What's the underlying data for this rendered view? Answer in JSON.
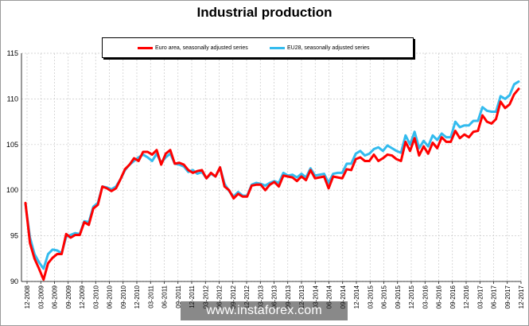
{
  "chart_data": {
    "type": "line",
    "title": "Industrial production",
    "xlabel": "",
    "ylabel": "",
    "ylim": [
      90,
      115
    ],
    "yticks": [
      90,
      95,
      100,
      105,
      110,
      115
    ],
    "grid": true,
    "legend_position": "top-center",
    "x_tick_labels": [
      "12-2008",
      "03-2009",
      "06-2009",
      "09-2009",
      "12-2009",
      "03-2010",
      "06-2010",
      "09-2010",
      "12-2010",
      "03-2011",
      "06-2011",
      "09-2011",
      "12-2011",
      "03-2012",
      "06-2012",
      "09-2012",
      "12-2012",
      "03-2013",
      "06-2013",
      "09-2013",
      "12-2013",
      "03-2014",
      "06-2014",
      "09-2014",
      "12-2014",
      "03-2015",
      "06-2015",
      "09-2015",
      "12-2015",
      "03-2016",
      "06-2016",
      "09-2016",
      "12-2016",
      "03-2017",
      "06-2017",
      "09-2017",
      "12-2017"
    ],
    "series": [
      {
        "name": "Euro area, seasonally adjusted series",
        "color": "#ff0000",
        "values": [
          98.6,
          94.2,
          92.5,
          91.4,
          90.2,
          92.0,
          92.6,
          93.0,
          93.0,
          95.2,
          94.8,
          95.1,
          95.1,
          96.5,
          96.2,
          98.0,
          98.4,
          100.4,
          100.2,
          99.9,
          100.2,
          101.2,
          102.3,
          102.8,
          103.5,
          103.2,
          104.2,
          104.2,
          103.9,
          104.4,
          102.8,
          104.0,
          104.4,
          102.9,
          103.0,
          102.8,
          102.2,
          101.9,
          102.1,
          102.2,
          101.3,
          101.9,
          101.5,
          102.5,
          100.4,
          100.0,
          99.1,
          99.6,
          99.3,
          99.3,
          100.5,
          100.6,
          100.6,
          100.0,
          100.6,
          100.9,
          100.4,
          101.6,
          101.5,
          101.4,
          101.0,
          101.5,
          101.1,
          102.2,
          101.3,
          101.4,
          101.5,
          100.2,
          101.5,
          101.4,
          101.3,
          102.3,
          102.2,
          103.4,
          103.6,
          103.2,
          103.2,
          103.9,
          103.2,
          103.5,
          103.9,
          103.8,
          103.4,
          103.2,
          105.3,
          104.3,
          105.7,
          103.8,
          104.8,
          104.0,
          105.2,
          104.6,
          105.8,
          105.3,
          105.3,
          106.5,
          105.7,
          106.1,
          105.8,
          106.4,
          106.5,
          108.2,
          107.5,
          107.3,
          107.8,
          109.7,
          109.0,
          109.4,
          110.5,
          111.1
        ]
      },
      {
        "name": "EU28, seasonally adjusted series",
        "color": "#33bbee",
        "values": [
          98.5,
          94.8,
          93.0,
          92.1,
          91.4,
          93.0,
          93.5,
          93.4,
          93.1,
          94.9,
          95.1,
          95.3,
          95.2,
          96.6,
          96.5,
          98.2,
          98.6,
          100.4,
          100.3,
          100.1,
          100.4,
          101.2,
          102.2,
          102.8,
          103.2,
          103.6,
          103.9,
          103.6,
          103.2,
          104.0,
          103.0,
          103.6,
          104.0,
          102.9,
          102.8,
          102.6,
          102.0,
          102.2,
          101.8,
          102.0,
          101.3,
          101.8,
          101.5,
          102.5,
          100.7,
          99.9,
          99.3,
          99.8,
          99.4,
          99.4,
          100.6,
          100.8,
          100.7,
          100.5,
          100.8,
          101.0,
          100.8,
          101.9,
          101.6,
          101.7,
          101.4,
          101.8,
          101.4,
          102.4,
          101.6,
          101.7,
          101.8,
          100.8,
          101.8,
          101.9,
          101.9,
          102.9,
          102.9,
          104.0,
          104.3,
          103.8,
          104.0,
          104.5,
          104.7,
          104.3,
          104.9,
          104.6,
          104.3,
          104.1,
          106.0,
          105.0,
          106.4,
          104.6,
          105.4,
          104.8,
          106.0,
          105.5,
          106.2,
          105.8,
          105.8,
          107.5,
          106.9,
          107.1,
          107.1,
          107.6,
          107.6,
          109.1,
          108.7,
          108.6,
          108.6,
          110.3,
          110.0,
          110.4,
          111.6,
          111.9
        ]
      }
    ]
  },
  "watermark": "www.instaforex.com"
}
